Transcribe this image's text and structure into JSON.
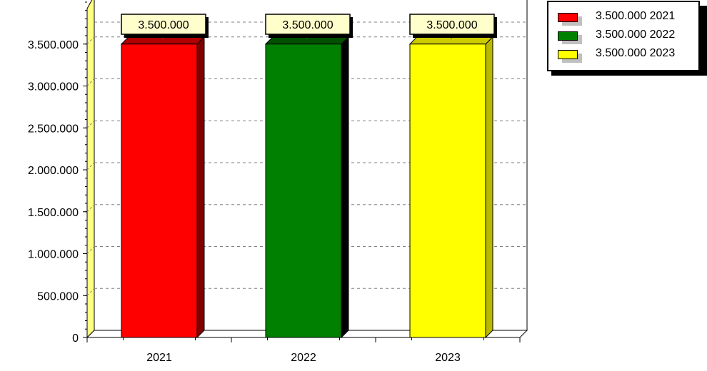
{
  "chart_data": {
    "type": "bar",
    "categories": [
      "2021",
      "2022",
      "2023"
    ],
    "values": [
      3500000,
      3500000,
      3500000
    ],
    "data_labels": [
      "3.500.000",
      "3.500.000",
      "3.500.000"
    ],
    "colors": [
      "#ff0000",
      "#008000",
      "#ffff00"
    ],
    "side_colors": [
      "#800000",
      "#000000",
      "#b8b800"
    ],
    "top_colors": [
      "#b00000",
      "#005000",
      "#cccc00"
    ],
    "ylim": [
      0,
      4000000
    ],
    "yticks": [
      0,
      500000,
      1000000,
      1500000,
      2000000,
      2500000,
      3000000,
      3500000
    ],
    "ytick_labels": [
      "0",
      "500.000",
      "1.000.000",
      "1.500.000",
      "2.000.000",
      "2.500.000",
      "3.000.000",
      "3.500.000"
    ],
    "grid": true,
    "legend_position": "top-right",
    "wall_color": "#ffff80",
    "label_box_color": "#ffffcc"
  },
  "legend": {
    "items": [
      {
        "label": "3.500.000 2021",
        "color": "#ff0000"
      },
      {
        "label": "3.500.000 2022",
        "color": "#008000"
      },
      {
        "label": "3.500.000 2023",
        "color": "#ffff00"
      }
    ]
  }
}
